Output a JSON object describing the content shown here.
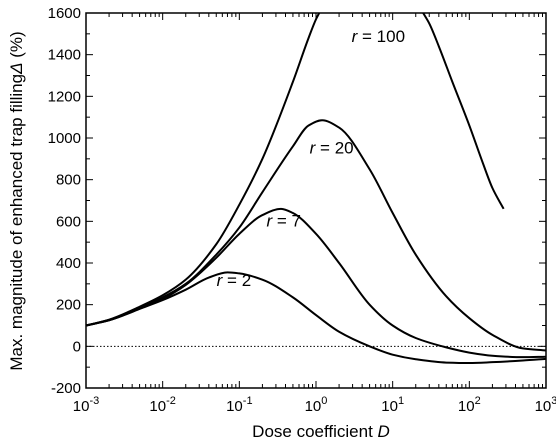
{
  "chart_data": {
    "type": "line",
    "xlabel": "Dose coefficient D",
    "ylabel": "Max. magnitude of enhanced trap filling Δ (%)",
    "x_scale": "log",
    "xlim": [
      0.001,
      1000
    ],
    "ylim": [
      -200,
      1600
    ],
    "x_ticks": [
      {
        "value": 0.001,
        "base": "10",
        "exp": "-3"
      },
      {
        "value": 0.01,
        "base": "10",
        "exp": "-2"
      },
      {
        "value": 0.1,
        "base": "10",
        "exp": "-1"
      },
      {
        "value": 1,
        "base": "10",
        "exp": "0"
      },
      {
        "value": 10,
        "base": "10",
        "exp": "1"
      },
      {
        "value": 100,
        "base": "10",
        "exp": "2"
      },
      {
        "value": 1000,
        "base": "10",
        "exp": "3"
      }
    ],
    "y_ticks": [
      {
        "value": -200,
        "label": "-200"
      },
      {
        "value": 0,
        "label": "0"
      },
      {
        "value": 200,
        "label": "200"
      },
      {
        "value": 400,
        "label": "400"
      },
      {
        "value": 600,
        "label": "600"
      },
      {
        "value": 800,
        "label": "800"
      },
      {
        "value": 1000,
        "label": "1000"
      },
      {
        "value": 1200,
        "label": "1200"
      },
      {
        "value": 1400,
        "label": "1400"
      },
      {
        "value": 1600,
        "label": "1600"
      }
    ],
    "reference_line": {
      "y": 0,
      "style": "dotted"
    },
    "series": [
      {
        "name": "r = 2",
        "label_italic": "r",
        "label_rest": " = 2",
        "label_at": [
          0.085,
          290
        ],
        "x": [
          0.001,
          0.002,
          0.005,
          0.01,
          0.02,
          0.04,
          0.07,
          0.1,
          0.2,
          0.5,
          1,
          2,
          5,
          10,
          20,
          50,
          100,
          200,
          500,
          1000
        ],
        "y": [
          100,
          125,
          180,
          222,
          272,
          330,
          355,
          350,
          320,
          235,
          150,
          70,
          0,
          -40,
          -62,
          -78,
          -80,
          -76,
          -68,
          -60
        ]
      },
      {
        "name": "r = 7",
        "label_italic": "r",
        "label_rest": " = 7",
        "label_at": [
          0.38,
          575
        ],
        "x": [
          0.001,
          0.002,
          0.005,
          0.01,
          0.02,
          0.05,
          0.1,
          0.2,
          0.35,
          0.5,
          1,
          2,
          5,
          10,
          20,
          50,
          100,
          200,
          500,
          1000
        ],
        "y": [
          100,
          125,
          180,
          228,
          295,
          425,
          540,
          630,
          660,
          640,
          540,
          400,
          200,
          100,
          40,
          -5,
          -30,
          -45,
          -52,
          -50
        ]
      },
      {
        "name": "r = 20",
        "label_italic": "r",
        "label_rest": " = 20",
        "label_at": [
          1.6,
          925
        ],
        "x": [
          0.001,
          0.002,
          0.005,
          0.01,
          0.02,
          0.05,
          0.1,
          0.2,
          0.5,
          0.8,
          1.2,
          2,
          5,
          10,
          20,
          50,
          100,
          200,
          500,
          1000
        ],
        "y": [
          100,
          127,
          185,
          235,
          300,
          440,
          570,
          740,
          960,
          1060,
          1085,
          1050,
          850,
          640,
          440,
          240,
          135,
          55,
          -10,
          -20
        ]
      },
      {
        "name": "r = 100",
        "label_italic": "r",
        "label_rest": " = 100",
        "label_at": [
          6.5,
          1460
        ],
        "x": [
          0.001,
          0.002,
          0.005,
          0.01,
          0.02,
          0.05,
          0.1,
          0.2,
          0.5,
          0.8,
          1,
          1.1,
          25,
          30,
          40,
          60,
          100,
          150,
          200,
          280
        ],
        "y": [
          100,
          128,
          190,
          245,
          320,
          490,
          680,
          900,
          1270,
          1480,
          1570,
          1600,
          1600,
          1550,
          1440,
          1270,
          1060,
          880,
          760,
          660
        ]
      }
    ]
  }
}
